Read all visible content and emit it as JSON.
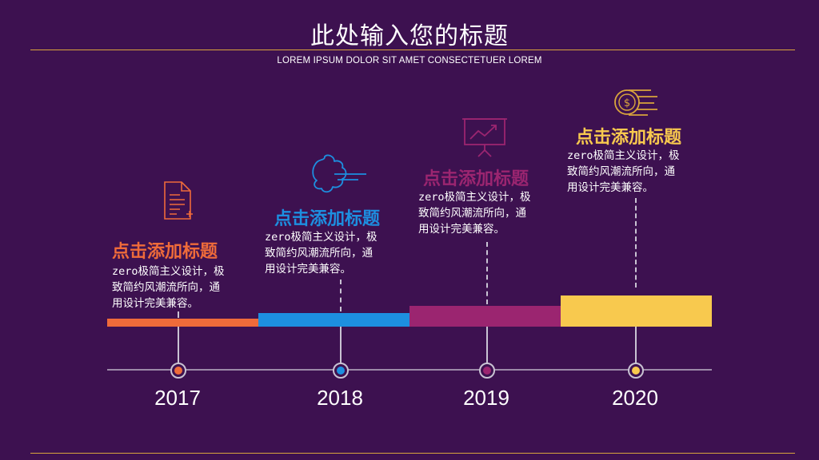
{
  "header": {
    "title": "此处输入您的标题",
    "subtitle": "LOREM IPSUM DOLOR SIT AMET CONSECTETUER LOREM"
  },
  "colors": {
    "background": "#3d1150",
    "rule": "#d9a53c",
    "orange": "#ef6b3a",
    "blue": "#1d8fe0",
    "magenta": "#9b2570",
    "yellow": "#f8c94e"
  },
  "milestones": [
    {
      "year": "2017",
      "title": "点击添加标题",
      "body_lines": [
        "zero极简主义设计，极",
        "致简约风潮流所向，通",
        "用设计完美兼容。"
      ],
      "icon": "document-icon",
      "color": "#ef6b3a"
    },
    {
      "year": "2018",
      "title": "点击添加标题",
      "body_lines": [
        "zero极简主义设计，极",
        "致简约风潮流所向，通",
        "用设计完美兼容。"
      ],
      "icon": "puzzle-icon",
      "color": "#1d8fe0"
    },
    {
      "year": "2019",
      "title": "点击添加标题",
      "body_lines": [
        "zero极简主义设计，极",
        "致简约风潮流所向，通",
        "用设计完美兼容。"
      ],
      "icon": "presentation-chart-icon",
      "color": "#9b2570"
    },
    {
      "year": "2020",
      "title": "点击添加标题",
      "body_lines": [
        "zero极简主义设计，极",
        "致简约风潮流所向，通",
        "用设计完美兼容。"
      ],
      "icon": "fast-coin-icon",
      "color": "#f8c94e"
    }
  ]
}
